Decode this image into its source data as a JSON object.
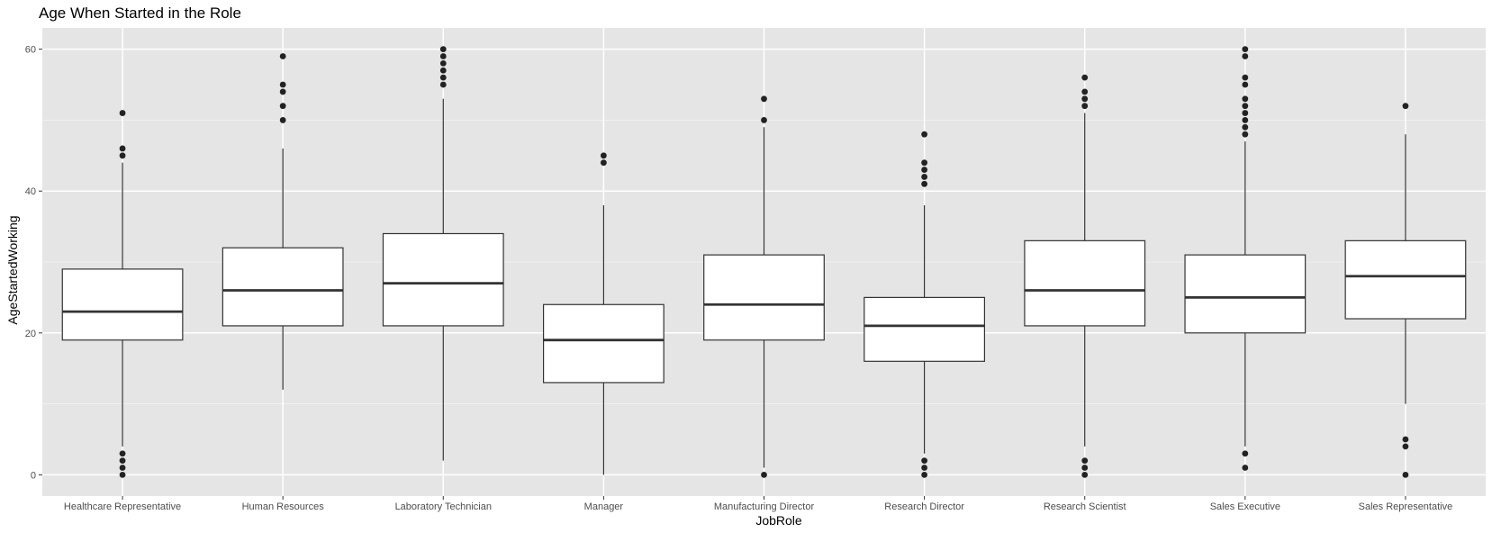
{
  "chart_data": {
    "type": "boxplot",
    "title": "Age When Started in the Role",
    "xlabel": "JobRole",
    "ylabel": "AgeStartedWorking",
    "ylim": [
      -3,
      63
    ],
    "y_ticks": [
      0,
      20,
      40,
      60
    ],
    "grid": true,
    "categories": [
      "Healthcare Representative",
      "Human Resources",
      "Laboratory Technician",
      "Manager",
      "Manufacturing Director",
      "Research Director",
      "Research Scientist",
      "Sales Executive",
      "Sales Representative"
    ],
    "boxes": [
      {
        "category": "Healthcare Representative",
        "whisker_low": 4,
        "q1": 19,
        "median": 23,
        "q3": 29,
        "whisker_high": 44,
        "outliers": [
          0,
          1,
          2,
          3,
          45,
          46,
          51
        ]
      },
      {
        "category": "Human Resources",
        "whisker_low": 12,
        "q1": 21,
        "median": 26,
        "q3": 32,
        "whisker_high": 46,
        "outliers": [
          50,
          52,
          54,
          55,
          59
        ]
      },
      {
        "category": "Laboratory Technician",
        "whisker_low": 2,
        "q1": 21,
        "median": 27,
        "q3": 34,
        "whisker_high": 53,
        "outliers": [
          55,
          56,
          57,
          58,
          59,
          60
        ]
      },
      {
        "category": "Manager",
        "whisker_low": 0,
        "q1": 13,
        "median": 19,
        "q3": 24,
        "whisker_high": 38,
        "outliers": [
          44,
          45
        ]
      },
      {
        "category": "Manufacturing Director",
        "whisker_low": 1,
        "q1": 19,
        "median": 24,
        "q3": 31,
        "whisker_high": 49,
        "outliers": [
          0,
          50,
          53
        ]
      },
      {
        "category": "Research Director",
        "whisker_low": 3,
        "q1": 16,
        "median": 21,
        "q3": 25,
        "whisker_high": 38,
        "outliers": [
          0,
          1,
          2,
          41,
          42,
          43,
          44,
          48
        ]
      },
      {
        "category": "Research Scientist",
        "whisker_low": 4,
        "q1": 21,
        "median": 26,
        "q3": 33,
        "whisker_high": 51,
        "outliers": [
          0,
          1,
          2,
          52,
          53,
          54,
          56
        ]
      },
      {
        "category": "Sales Executive",
        "whisker_low": 4,
        "q1": 20,
        "median": 25,
        "q3": 31,
        "whisker_high": 47,
        "outliers": [
          1,
          3,
          48,
          49,
          50,
          51,
          52,
          53,
          55,
          56,
          59,
          60
        ]
      },
      {
        "category": "Sales Representative",
        "whisker_low": 10,
        "q1": 22,
        "median": 28,
        "q3": 33,
        "whisker_high": 48,
        "outliers": [
          0,
          4,
          5,
          52
        ]
      }
    ],
    "colors": {
      "panel_background": "#e5e5e5",
      "grid_major": "#ffffff",
      "grid_minor": "#f2f2f2",
      "box_fill": "#ffffff",
      "box_stroke": "#333333",
      "outlier": "#222222"
    }
  }
}
